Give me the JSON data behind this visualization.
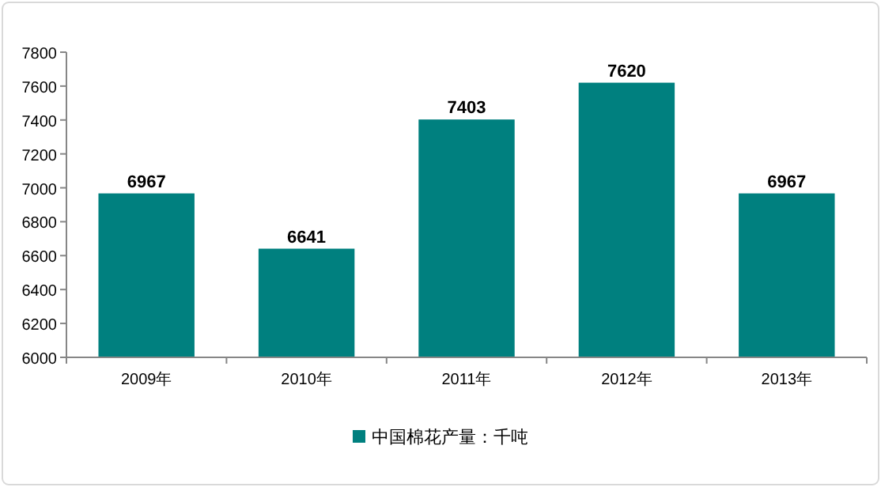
{
  "chart_data": {
    "type": "bar",
    "categories": [
      "2009年",
      "2010年",
      "2011年",
      "2012年",
      "2013年"
    ],
    "series": [
      {
        "name": "中国棉花产量：千吨",
        "color": "#00807f",
        "values": [
          6967,
          6641,
          7403,
          7620,
          6967
        ]
      }
    ],
    "ylim": [
      6000,
      7800
    ],
    "yticks": [
      6000,
      6200,
      6400,
      6600,
      6800,
      7000,
      7200,
      7400,
      7600,
      7800
    ],
    "data_labels": true,
    "legend": "bottom",
    "grid": false
  }
}
